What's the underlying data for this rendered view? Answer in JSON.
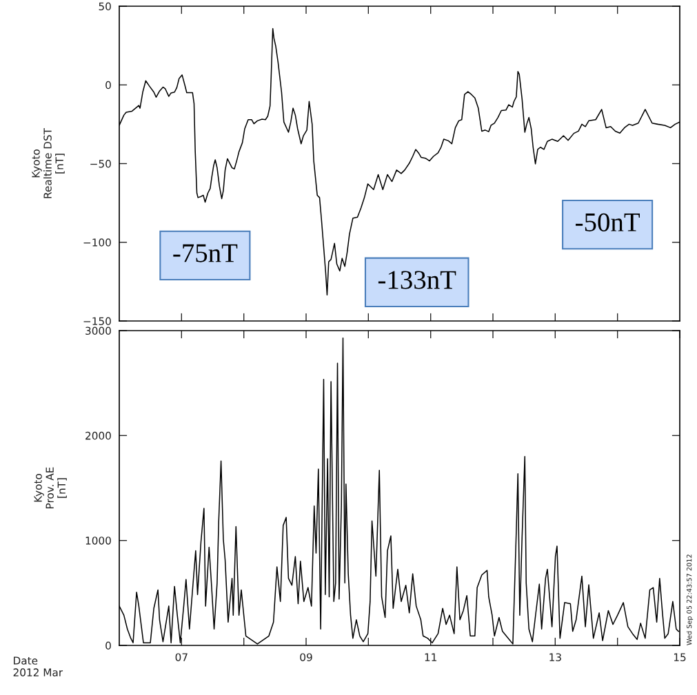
{
  "chart_data": [
    {
      "type": "line",
      "ylabel": "Kyoto\nRealtime DST\n[nT]",
      "xlim": [
        6,
        15
      ],
      "ylim": [
        -150,
        50
      ],
      "tick_labels": "y",
      "grid": false,
      "legend": false,
      "xticks": [
        {
          "value": 7,
          "label": null
        },
        {
          "value": 8,
          "label": null
        },
        {
          "value": 9,
          "label": null
        },
        {
          "value": 10,
          "label": null
        },
        {
          "value": 11,
          "label": null
        },
        {
          "value": 12,
          "label": null
        },
        {
          "value": 13,
          "label": null
        },
        {
          "value": 14,
          "label": null
        }
      ],
      "yticks": [
        {
          "value": -150,
          "label": "−150"
        },
        {
          "value": -100,
          "label": "−100"
        },
        {
          "value": -50,
          "label": "−50"
        },
        0,
        50
      ],
      "annotations": [
        "-75nT",
        "-133nT",
        "-50nT"
      ],
      "x": [
        6.0,
        6.074,
        6.111,
        6.204,
        6.314,
        6.333,
        6.377,
        6.425,
        6.481,
        6.555,
        6.592,
        6.647,
        6.702,
        6.739,
        6.795,
        6.832,
        6.887,
        6.924,
        6.961,
        7.009,
        7.054,
        7.083,
        7.176,
        7.201,
        7.22,
        7.246,
        7.264,
        7.312,
        7.349,
        7.379,
        7.423,
        7.46,
        7.486,
        7.516,
        7.541,
        7.571,
        7.608,
        7.645,
        7.671,
        7.7,
        7.737,
        7.774,
        7.811,
        7.848,
        7.885,
        7.922,
        7.977,
        8.014,
        8.07,
        8.125,
        8.162,
        8.218,
        8.292,
        8.347,
        8.384,
        8.421,
        8.439,
        8.465,
        8.484,
        8.513,
        8.55,
        8.606,
        8.643,
        8.717,
        8.754,
        8.79,
        8.827,
        8.864,
        8.92,
        8.957,
        9.012,
        9.049,
        9.097,
        9.123,
        9.179,
        9.216,
        9.245,
        9.289,
        9.315,
        9.337,
        9.363,
        9.4,
        9.456,
        9.493,
        9.541,
        9.578,
        9.622,
        9.659,
        9.696,
        9.751,
        9.825,
        9.881,
        9.936,
        9.991,
        10.084,
        10.158,
        10.232,
        10.306,
        10.379,
        10.453,
        10.527,
        10.583,
        10.657,
        10.712,
        10.76,
        10.805,
        10.849,
        10.916,
        10.982,
        11.045,
        11.119,
        11.167,
        11.211,
        11.285,
        11.34,
        11.396,
        11.451,
        11.499,
        11.544,
        11.599,
        11.655,
        11.71,
        11.765,
        11.821,
        11.876,
        11.932,
        11.969,
        12.024,
        12.08,
        12.135,
        12.209,
        12.253,
        12.312,
        12.338,
        12.375,
        12.401,
        12.423,
        12.468,
        12.512,
        12.542,
        12.578,
        12.615,
        12.645,
        12.682,
        12.719,
        12.763,
        12.819,
        12.874,
        12.948,
        13.04,
        13.133,
        13.207,
        13.299,
        13.373,
        13.428,
        13.484,
        13.539,
        13.65,
        13.746,
        13.817,
        13.89,
        13.965,
        14.038,
        14.112,
        14.186,
        14.242,
        14.334,
        14.445,
        14.556,
        14.648,
        14.759,
        14.851,
        14.925,
        15.0
      ],
      "series": [
        {
          "color": "#000000",
          "values": [
            -25.7,
            -19.2,
            -17.4,
            -16.7,
            -13.1,
            -14.8,
            -4.6,
            2.6,
            -0.6,
            -4.6,
            -7.8,
            -3.9,
            -1.4,
            -2.5,
            -7.3,
            -5.1,
            -4.6,
            -1.7,
            4.1,
            6.3,
            -0.3,
            -4.9,
            -4.9,
            -11.9,
            -42.5,
            -68.7,
            -71.6,
            -70.9,
            -70.1,
            -74.5,
            -68.7,
            -65.8,
            -58.5,
            -51.2,
            -47.6,
            -52.7,
            -64.3,
            -72.3,
            -67.2,
            -54.1,
            -46.9,
            -49.8,
            -52.7,
            -53.4,
            -48.3,
            -42.5,
            -36.7,
            -27.9,
            -22.1,
            -22.1,
            -24.7,
            -22.8,
            -21.8,
            -22.1,
            -19.9,
            -13.4,
            5.5,
            35.8,
            29.6,
            24.5,
            14.3,
            -4.6,
            -23.6,
            -30.1,
            -23.6,
            -14.8,
            -19.2,
            -27.9,
            -37.4,
            -32.3,
            -28.7,
            -10.5,
            -25.0,
            -48.3,
            -70.1,
            -71.6,
            -84.7,
            -106.5,
            -119.6,
            -133.5,
            -112.4,
            -110.9,
            -100.7,
            -113.8,
            -118.2,
            -110.2,
            -115.3,
            -106.5,
            -94.9,
            -84.7,
            -84.0,
            -78.2,
            -71.6,
            -62.9,
            -66.5,
            -57.0,
            -66.5,
            -57.0,
            -61.4,
            -54.1,
            -56.3,
            -54.1,
            -49.8,
            -45.4,
            -41.0,
            -43.2,
            -46.1,
            -46.6,
            -48.3,
            -45.4,
            -43.2,
            -39.6,
            -34.5,
            -35.5,
            -37.4,
            -27.2,
            -22.8,
            -22.1,
            -6.1,
            -4.3,
            -6.1,
            -8.3,
            -14.8,
            -29.4,
            -28.7,
            -29.7,
            -25.7,
            -24.3,
            -20.7,
            -16.3,
            -16.0,
            -12.6,
            -14.1,
            -10.5,
            -7.6,
            8.5,
            6.7,
            -9.0,
            -30.1,
            -25.0,
            -20.7,
            -27.9,
            -39.6,
            -50.2,
            -41.0,
            -39.6,
            -41.0,
            -35.9,
            -34.5,
            -35.9,
            -32.3,
            -35.2,
            -30.8,
            -29.4,
            -25.0,
            -26.5,
            -22.8,
            -22.1,
            -15.6,
            -27.2,
            -26.5,
            -29.4,
            -30.6,
            -27.2,
            -25.0,
            -25.7,
            -24.3,
            -15.6,
            -24.3,
            -25.0,
            -25.7,
            -27.2,
            -25.0,
            -23.6
          ]
        }
      ]
    },
    {
      "type": "line",
      "ylabel": "Kyoto\nProv. AE\n[nT]",
      "xlabel": "Date\n2012 Mar",
      "xlim": [
        6,
        15
      ],
      "ylim": [
        0,
        3000
      ],
      "grid": false,
      "legend": false,
      "xticks": [
        {
          "value": 7,
          "label": "07"
        },
        {
          "value": 8,
          "label": null
        },
        {
          "value": 9,
          "label": "09"
        },
        {
          "value": 10,
          "label": null
        },
        {
          "value": 11,
          "label": "11"
        },
        {
          "value": 12,
          "label": null
        },
        {
          "value": 13,
          "label": "13"
        },
        {
          "value": 14,
          "label": null
        },
        {
          "value": 15,
          "label": "15"
        }
      ],
      "yticks": [
        0,
        1000,
        2000,
        3000
      ],
      "annotations": [
        "Wed Sep 05 22:43:57 2012"
      ],
      "x": [
        6.0,
        6.074,
        6.13,
        6.185,
        6.222,
        6.278,
        6.314,
        6.388,
        6.499,
        6.555,
        6.621,
        6.647,
        6.702,
        6.795,
        6.832,
        6.887,
        6.932,
        6.98,
        7.035,
        7.072,
        7.127,
        7.194,
        7.227,
        7.257,
        7.312,
        7.36,
        7.386,
        7.442,
        7.479,
        7.523,
        7.571,
        7.597,
        7.634,
        7.671,
        7.7,
        7.748,
        7.811,
        7.83,
        7.874,
        7.922,
        7.959,
        8.033,
        8.218,
        8.402,
        8.476,
        8.532,
        8.587,
        8.632,
        8.68,
        8.717,
        8.772,
        8.827,
        8.872,
        8.909,
        8.964,
        9.031,
        9.086,
        9.13,
        9.16,
        9.197,
        9.234,
        9.282,
        9.308,
        9.345,
        9.371,
        9.4,
        9.445,
        9.474,
        9.504,
        9.53,
        9.567,
        9.592,
        9.622,
        9.64,
        9.677,
        9.714,
        9.751,
        9.807,
        9.862,
        9.918,
        9.992,
        10.028,
        10.058,
        10.121,
        10.176,
        10.213,
        10.269,
        10.306,
        10.361,
        10.398,
        10.472,
        10.527,
        10.601,
        10.657,
        10.712,
        10.768,
        10.842,
        10.879,
        10.952,
        11.026,
        11.119,
        11.193,
        11.248,
        11.304,
        11.377,
        11.422,
        11.47,
        11.525,
        11.581,
        11.636,
        11.71,
        11.747,
        11.821,
        11.906,
        11.932,
        11.987,
        12.024,
        12.098,
        12.153,
        12.246,
        12.32,
        12.375,
        12.401,
        12.431,
        12.468,
        12.512,
        12.534,
        12.578,
        12.634,
        12.689,
        12.745,
        12.782,
        12.845,
        12.874,
        12.948,
        13.003,
        13.029,
        13.077,
        13.151,
        13.244,
        13.281,
        13.336,
        13.428,
        13.484,
        13.539,
        13.613,
        13.706,
        13.761,
        13.853,
        13.927,
        14.001,
        14.094,
        14.167,
        14.241,
        14.315,
        14.371,
        14.445,
        14.519,
        14.574,
        14.63,
        14.677,
        14.722,
        14.759,
        14.814,
        14.888,
        14.943,
        14.98
      ],
      "series": [
        {
          "color": "#000000",
          "values": [
            375,
            288,
            156,
            68,
            25,
            507,
            375,
            25,
            25,
            353,
            529,
            244,
            35,
            375,
            25,
            562,
            288,
            25,
            375,
            628,
            156,
            660,
            902,
            485,
            989,
            1307,
            375,
            935,
            595,
            156,
            595,
            1187,
            1757,
            1011,
            814,
            222,
            639,
            288,
            1132,
            288,
            529,
            90,
            14,
            90,
            222,
            748,
            419,
            1143,
            1220,
            639,
            573,
            847,
            397,
            803,
            419,
            551,
            375,
            1329,
            880,
            1680,
            156,
            2536,
            485,
            1779,
            463,
            2514,
            419,
            595,
            2689,
            441,
            1340,
            2930,
            595,
            1538,
            682,
            288,
            68,
            244,
            90,
            35,
            112,
            419,
            1187,
            660,
            1669,
            463,
            266,
            902,
            1044,
            353,
            726,
            419,
            573,
            310,
            682,
            375,
            244,
            90,
            68,
            25,
            112,
            353,
            200,
            288,
            112,
            748,
            244,
            332,
            474,
            90,
            90,
            551,
            671,
            715,
            463,
            288,
            90,
            266,
            134,
            68,
            14,
            1088,
            1636,
            288,
            1033,
            1801,
            595,
            156,
            35,
            310,
            584,
            156,
            639,
            726,
            178,
            847,
            946,
            68,
            408,
            397,
            134,
            244,
            660,
            178,
            577,
            68,
            310,
            46,
            332,
            200,
            288,
            408,
            178,
            112,
            57,
            211,
            68,
            529,
            551,
            222,
            639,
            310,
            68,
            112,
            419,
            156,
            134
          ]
        }
      ]
    }
  ]
}
